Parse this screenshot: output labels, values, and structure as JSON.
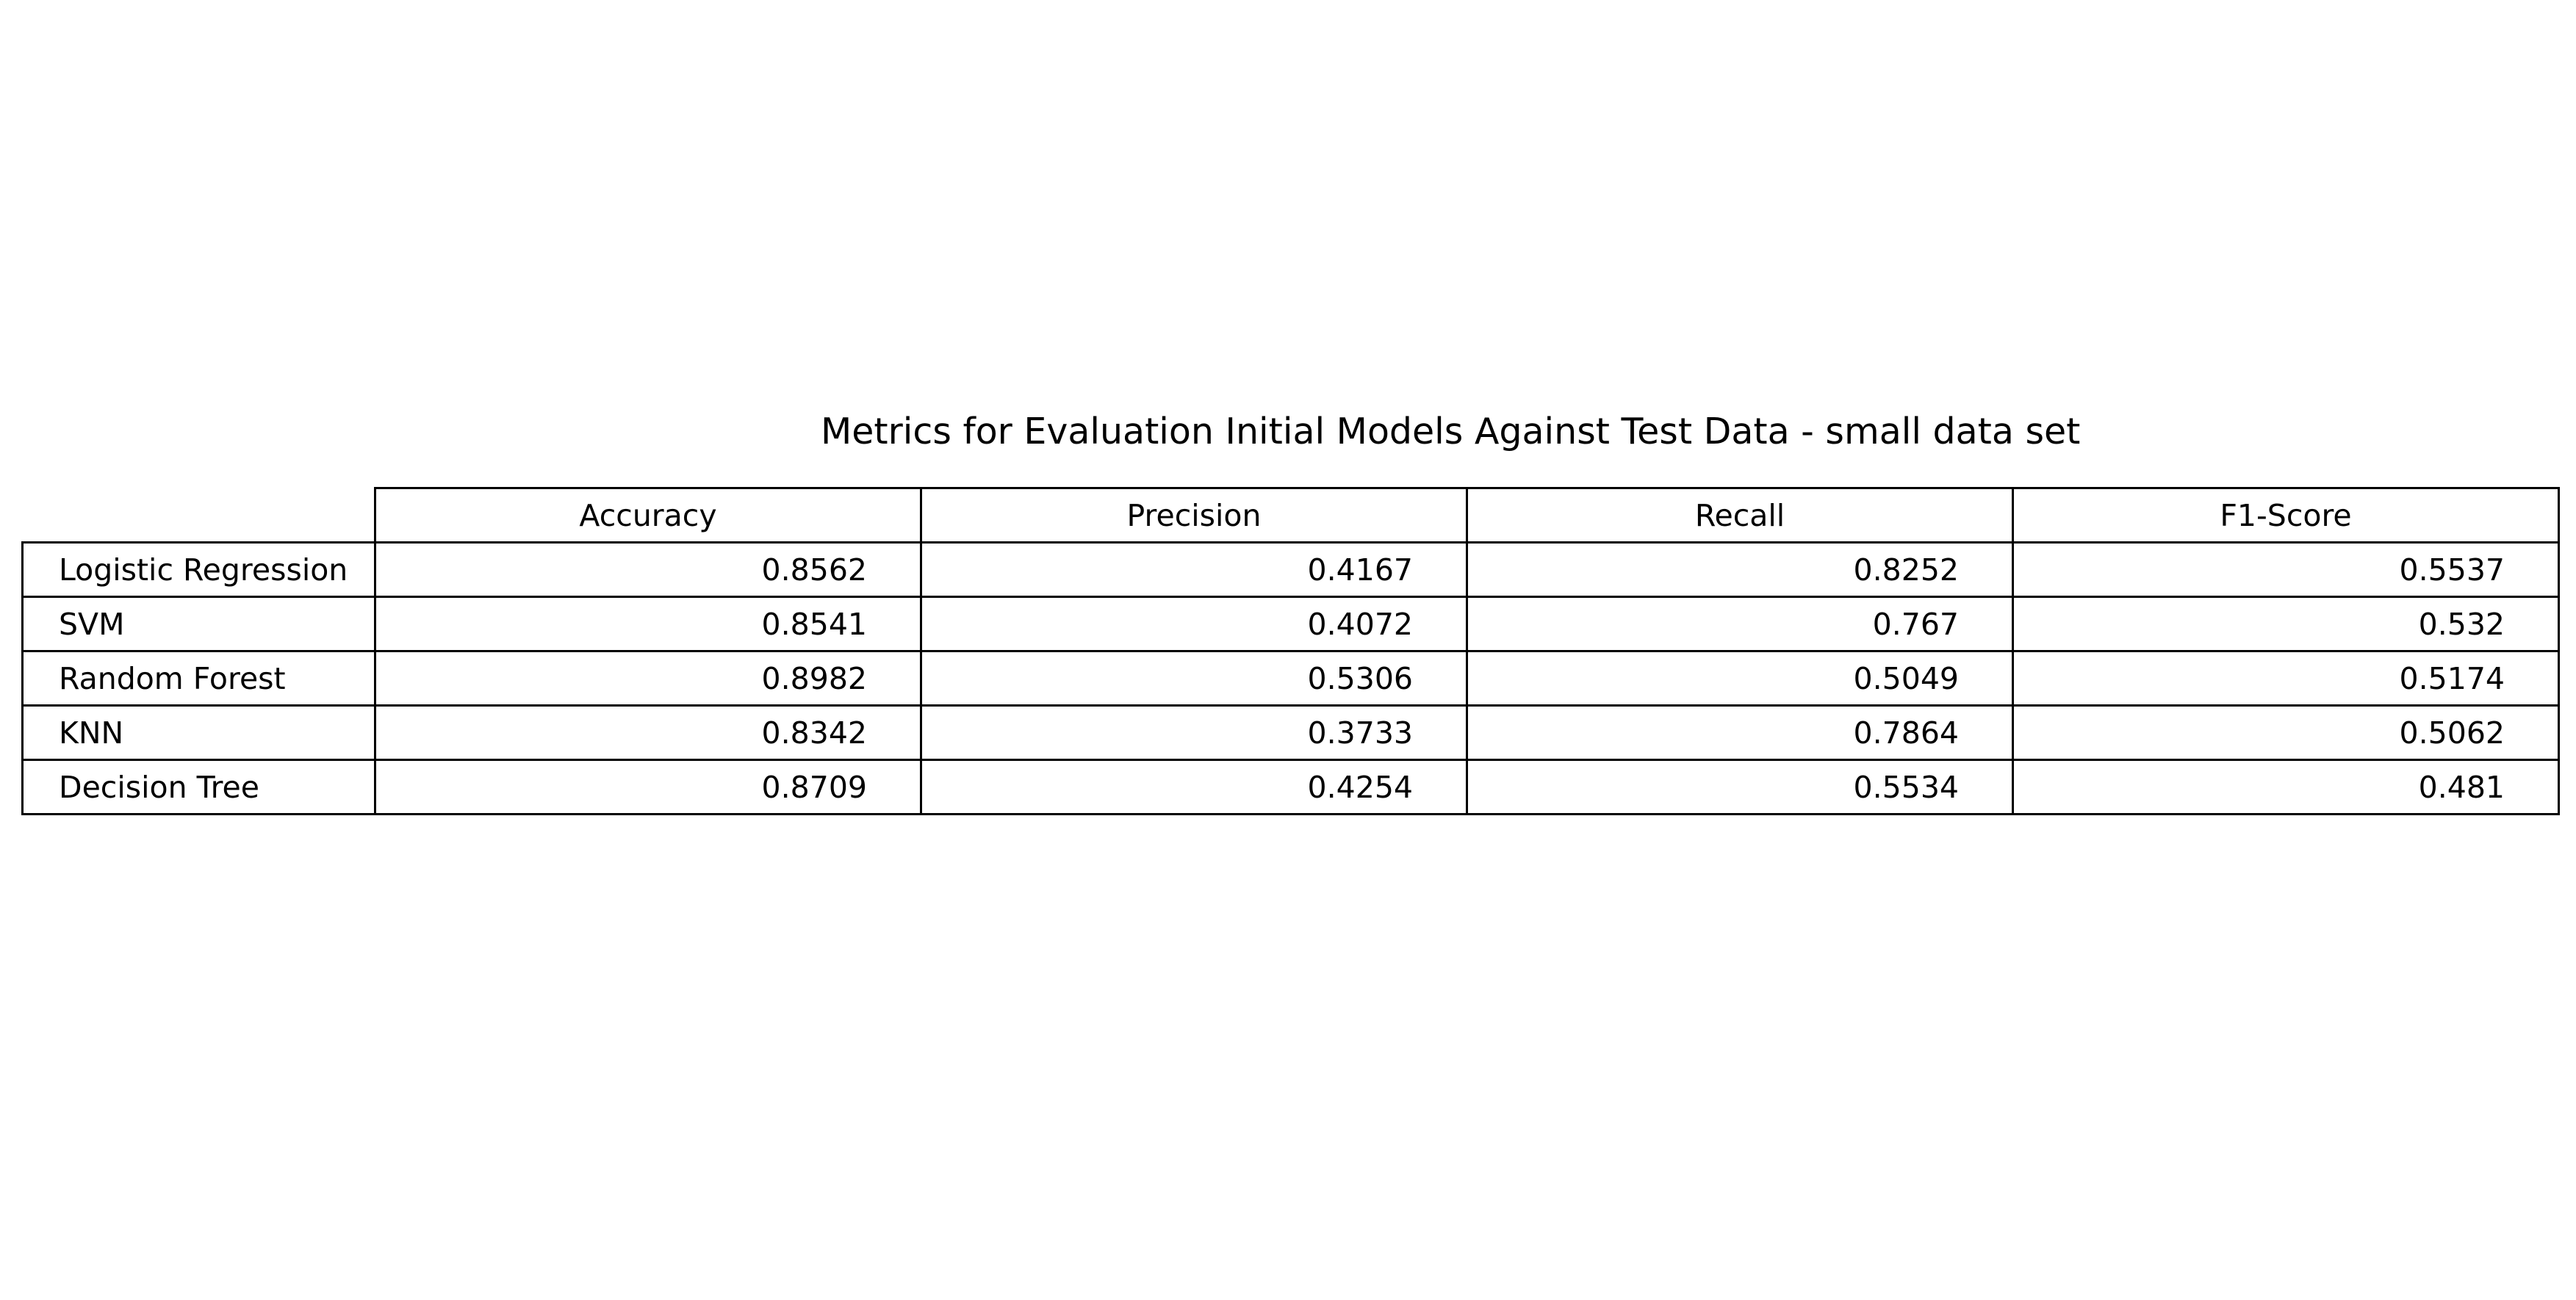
{
  "chart_data": {
    "type": "table",
    "title": "Metrics for Evaluation Initial Models Against Test Data - small data set",
    "columns": [
      "Accuracy",
      "Precision",
      "Recall",
      "F1-Score"
    ],
    "rows": [
      {
        "label": "Logistic Regression",
        "values": [
          "0.8562",
          "0.4167",
          "0.8252",
          "0.5537"
        ]
      },
      {
        "label": "SVM",
        "values": [
          "0.8541",
          "0.4072",
          "0.767",
          "0.532"
        ]
      },
      {
        "label": "Random Forest",
        "values": [
          "0.8982",
          "0.5306",
          "0.5049",
          "0.5174"
        ]
      },
      {
        "label": "KNN",
        "values": [
          "0.8342",
          "0.3733",
          "0.7864",
          "0.5062"
        ]
      },
      {
        "label": "Decision Tree",
        "values": [
          "0.8709",
          "0.4254",
          "0.5534",
          "0.481"
        ]
      }
    ]
  }
}
